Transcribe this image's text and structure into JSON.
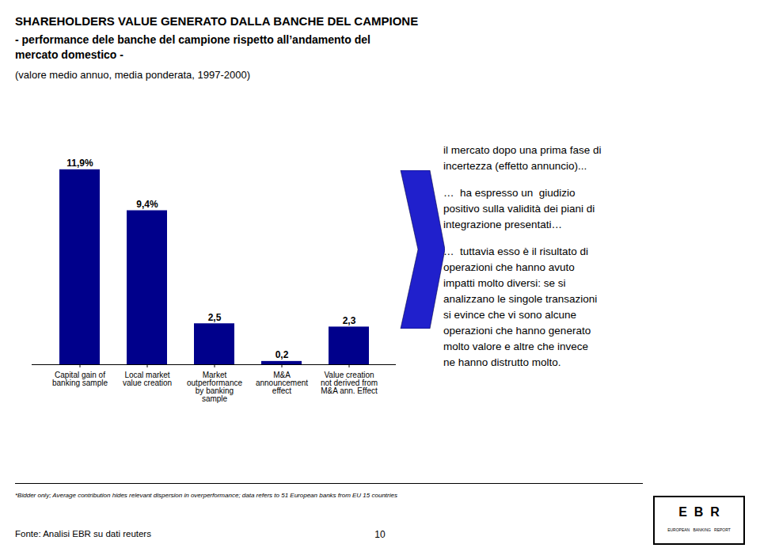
{
  "chart_data": {
    "type": "bar",
    "title": [
      "SHAREHOLDERS VALUE GENERATO DALLA BANCHE DEL CAMPIONE",
      "- performance dele banche del campione rispetto all’andamento del",
      "mercato domestico -"
    ],
    "subtitle": "(valore medio annuo, media ponderata, 1997-2000)",
    "categories": [
      "Capital gain of\nbanking sample",
      "Local market\nvalue creation",
      "Market\noutperformance\nby banking\nsample",
      "M&A\nannouncement\neffect",
      "Value creation\nnot derived from\nM&A ann. Effect"
    ],
    "values": [
      11.9,
      9.4,
      2.5,
      0.2,
      2.3
    ],
    "value_labels": [
      "11,9%",
      "9,4%",
      "2,5",
      "0,2",
      "2,3"
    ],
    "color": "#00008B",
    "ylim": [
      0,
      14.5
    ],
    "tick_labels": "x",
    "data_labels": true,
    "annotations": [
      [
        "il mercato dopo una prima fase di",
        "incertezza (effetto annuncio)..."
      ],
      [
        "…  ha espresso un  giudizio",
        "positivo sulla validità dei piani di",
        "integrazione presentati…"
      ],
      [
        "…  tuttavia esso è il risultato di",
        "operazioni che hanno avuto",
        "impatti molto diversi: se si",
        "analizzano le singole transazioni",
        "si evince che vi sono alcune",
        "operazioni che hanno generato",
        "molto valore e altre che invece",
        "ne hanno distrutto molto."
      ]
    ],
    "footnote": "*Bidder only; Average contribution hides relevant dispersion in overperformance; data refers to 51 European banks from EU 15 countries",
    "source": "Fonte: Analisi EBR su dati reuters",
    "page_number": "10",
    "logo": [
      "E  B  R",
      "EUROPEAN   BANKING   REPORT"
    ]
  }
}
